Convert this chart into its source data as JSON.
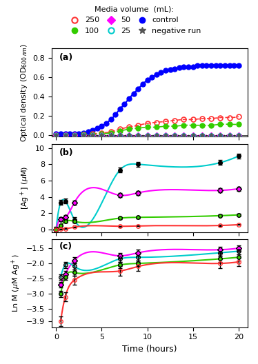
{
  "title": "",
  "legend_title": "Media volume  (mL):",
  "colors": {
    "250": "#ff3333",
    "100": "#33cc00",
    "50": "#ff00ff",
    "25": "#00cccc",
    "control": "#0000ff",
    "negative": "#555555"
  },
  "panel_a": {
    "label": "(a)",
    "ylabel": "Optical density (OD₆₀₀ ₙₘ)",
    "ylim": [
      -0.02,
      0.9
    ],
    "yticks": [
      0.0,
      0.2,
      0.4,
      0.6,
      0.8
    ],
    "control_t": [
      0,
      0.5,
      1,
      1.5,
      2,
      2.5,
      3,
      3.5,
      4,
      4.5,
      5,
      5.5,
      6,
      6.5,
      7,
      7.5,
      8,
      8.5,
      9,
      9.5,
      10,
      10.5,
      11,
      11.5,
      12,
      12.5,
      13,
      13.5,
      14,
      14.5,
      15,
      15.5,
      16,
      16.5,
      17,
      17.5,
      18,
      18.5,
      19,
      19.5,
      20
    ],
    "control_y": [
      0.01,
      0.01,
      0.01,
      0.01,
      0.01,
      0.01,
      0.02,
      0.03,
      0.05,
      0.07,
      0.09,
      0.12,
      0.16,
      0.21,
      0.27,
      0.32,
      0.38,
      0.43,
      0.48,
      0.53,
      0.57,
      0.6,
      0.63,
      0.65,
      0.67,
      0.68,
      0.69,
      0.7,
      0.71,
      0.71,
      0.71,
      0.72,
      0.72,
      0.72,
      0.72,
      0.72,
      0.72,
      0.72,
      0.72,
      0.72,
      0.72
    ],
    "t250": [
      0,
      1,
      2,
      3,
      4,
      5,
      6,
      7,
      8,
      9,
      10,
      11,
      12,
      13,
      14,
      15,
      16,
      17,
      18,
      19,
      20
    ],
    "y250": [
      0.0,
      0.0,
      0.0,
      0.005,
      0.01,
      0.02,
      0.03,
      0.06,
      0.08,
      0.1,
      0.12,
      0.13,
      0.14,
      0.15,
      0.16,
      0.16,
      0.17,
      0.17,
      0.18,
      0.18,
      0.19
    ],
    "t100": [
      0,
      1,
      2,
      3,
      4,
      5,
      6,
      7,
      8,
      9,
      10,
      11,
      12,
      13,
      14,
      15,
      16,
      17,
      18,
      19,
      20
    ],
    "y100": [
      0.0,
      0.0,
      0.0,
      0.003,
      0.005,
      0.01,
      0.02,
      0.04,
      0.06,
      0.07,
      0.08,
      0.08,
      0.09,
      0.09,
      0.1,
      0.1,
      0.1,
      0.1,
      0.11,
      0.11,
      0.11
    ],
    "t50": [
      0,
      1,
      2,
      3,
      4,
      5,
      6,
      7,
      8,
      9,
      10,
      11,
      12,
      13,
      14,
      15,
      16,
      17,
      18,
      19,
      20
    ],
    "y50": [
      0.0,
      0.0,
      0.0,
      0.0,
      0.0,
      0.0,
      0.0,
      0.0,
      0.0,
      0.0,
      0.0,
      0.0,
      0.0,
      0.0,
      0.0,
      0.0,
      0.0,
      0.0,
      0.0,
      0.0,
      0.0
    ],
    "t25": [
      0,
      1,
      2,
      3,
      4,
      5,
      6,
      7,
      8,
      9,
      10,
      11,
      12,
      13,
      14,
      15,
      16,
      17,
      18,
      19,
      20
    ],
    "y25": [
      0.0,
      0.0,
      0.0,
      0.0,
      0.0,
      0.0,
      0.0,
      0.0,
      0.0,
      0.0,
      0.0,
      0.0,
      0.0,
      0.0,
      0.0,
      0.0,
      0.0,
      0.0,
      0.0,
      0.0,
      0.0
    ],
    "t_neg": [
      0,
      1,
      2,
      3,
      4,
      5,
      6,
      7,
      8,
      9,
      10,
      11,
      12,
      13,
      14,
      15,
      16,
      17,
      18,
      19,
      20
    ],
    "y_neg": [
      0.0,
      0.0,
      0.0,
      0.0,
      0.0,
      0.0,
      0.0,
      0.0,
      0.0,
      0.0,
      0.0,
      0.0,
      0.0,
      0.0,
      0.0,
      0.0,
      0.0,
      0.0,
      0.0,
      0.0,
      0.0
    ]
  },
  "panel_b": {
    "label": "(b)",
    "ylabel": "[Ag⁺] (μM)",
    "ylim": [
      -0.3,
      10.5
    ],
    "yticks": [
      0,
      2,
      4,
      6,
      8,
      10
    ],
    "t25": [
      0,
      0.5,
      1,
      2,
      7,
      9,
      18,
      20
    ],
    "y25": [
      0.0,
      3.3,
      3.5,
      1.2,
      7.3,
      8.0,
      8.2,
      9.0
    ],
    "t50": [
      0,
      0.5,
      1,
      2,
      7,
      9,
      18,
      20
    ],
    "y50": [
      0.0,
      1.3,
      1.5,
      3.3,
      4.2,
      4.5,
      4.8,
      5.0
    ],
    "t100": [
      0,
      0.5,
      1,
      2,
      7,
      9,
      18,
      20
    ],
    "y100": [
      0.0,
      0.5,
      1.0,
      1.0,
      1.4,
      1.5,
      1.7,
      1.8
    ],
    "t250": [
      0,
      0.5,
      1,
      2,
      7,
      9,
      18,
      20
    ],
    "y250": [
      0.0,
      0.05,
      0.1,
      0.3,
      0.4,
      0.45,
      0.5,
      0.6
    ],
    "fit25_t": [
      0,
      0.5,
      1,
      2,
      7,
      9,
      18,
      20
    ],
    "fit25_y": [
      0.05,
      3.0,
      3.5,
      1.5,
      7.0,
      7.8,
      8.5,
      9.0
    ],
    "fit50_t": [
      0,
      0.5,
      1,
      2,
      7,
      9,
      18,
      20
    ],
    "fit50_y": [
      0.05,
      1.2,
      1.8,
      3.2,
      4.0,
      4.4,
      4.8,
      5.0
    ],
    "fit100_t": [
      0,
      0.5,
      1,
      2,
      7,
      9,
      18,
      20
    ],
    "fit100_y": [
      0.0,
      0.4,
      0.9,
      1.0,
      1.4,
      1.5,
      1.6,
      1.8
    ],
    "fit250_t": [
      0,
      0.5,
      1,
      2,
      7,
      9,
      18,
      20
    ],
    "fit250_y": [
      0.0,
      0.03,
      0.08,
      0.28,
      0.38,
      0.42,
      0.48,
      0.58
    ]
  },
  "panel_c": {
    "label": "(c)",
    "ylabel": "Ln M (μM Ag⁺)",
    "ylim": [
      -4.1,
      -1.2
    ],
    "yticks": [
      -3.9,
      -3.5,
      -3.0,
      -2.5,
      -2.0,
      -1.5
    ],
    "t25": [
      0.5,
      1,
      2,
      7,
      9,
      18,
      20
    ],
    "y25": [
      -2.45,
      -2.05,
      -2.1,
      -1.85,
      -1.8,
      -1.65,
      -1.6
    ],
    "t50": [
      0.5,
      1,
      2,
      7,
      9,
      18,
      20
    ],
    "y50": [
      -2.7,
      -2.35,
      -1.9,
      -1.75,
      -1.65,
      -1.55,
      -1.5
    ],
    "t100": [
      0.5,
      1,
      2,
      7,
      9,
      18,
      20
    ],
    "y100": [
      -3.0,
      -2.45,
      -2.3,
      -2.05,
      -2.0,
      -1.85,
      -1.8
    ],
    "t250": [
      0.5,
      1,
      2,
      7,
      9,
      18,
      20
    ],
    "y250": [
      -3.9,
      -3.1,
      -2.55,
      -2.25,
      -2.1,
      -2.0,
      -1.95
    ],
    "fit25_t": [
      0.5,
      2,
      7,
      20
    ],
    "fit25_y": [
      -2.45,
      -2.1,
      -1.85,
      -1.6
    ],
    "fit50_t": [
      0.5,
      2,
      7,
      20
    ],
    "fit50_y": [
      -2.7,
      -1.9,
      -1.75,
      -1.5
    ],
    "fit100_t": [
      0.5,
      2,
      7,
      20
    ],
    "fit100_y": [
      -3.0,
      -2.3,
      -2.05,
      -1.8
    ],
    "fit250_t": [
      0.5,
      2,
      7,
      20
    ],
    "fit250_y": [
      -3.9,
      -2.55,
      -2.25,
      -1.95
    ]
  },
  "xlim": [
    -0.5,
    21
  ],
  "xticks": [
    0,
    5,
    10,
    15,
    20
  ],
  "xlabel": "Time (hours)",
  "bg_color": "#ffffff"
}
